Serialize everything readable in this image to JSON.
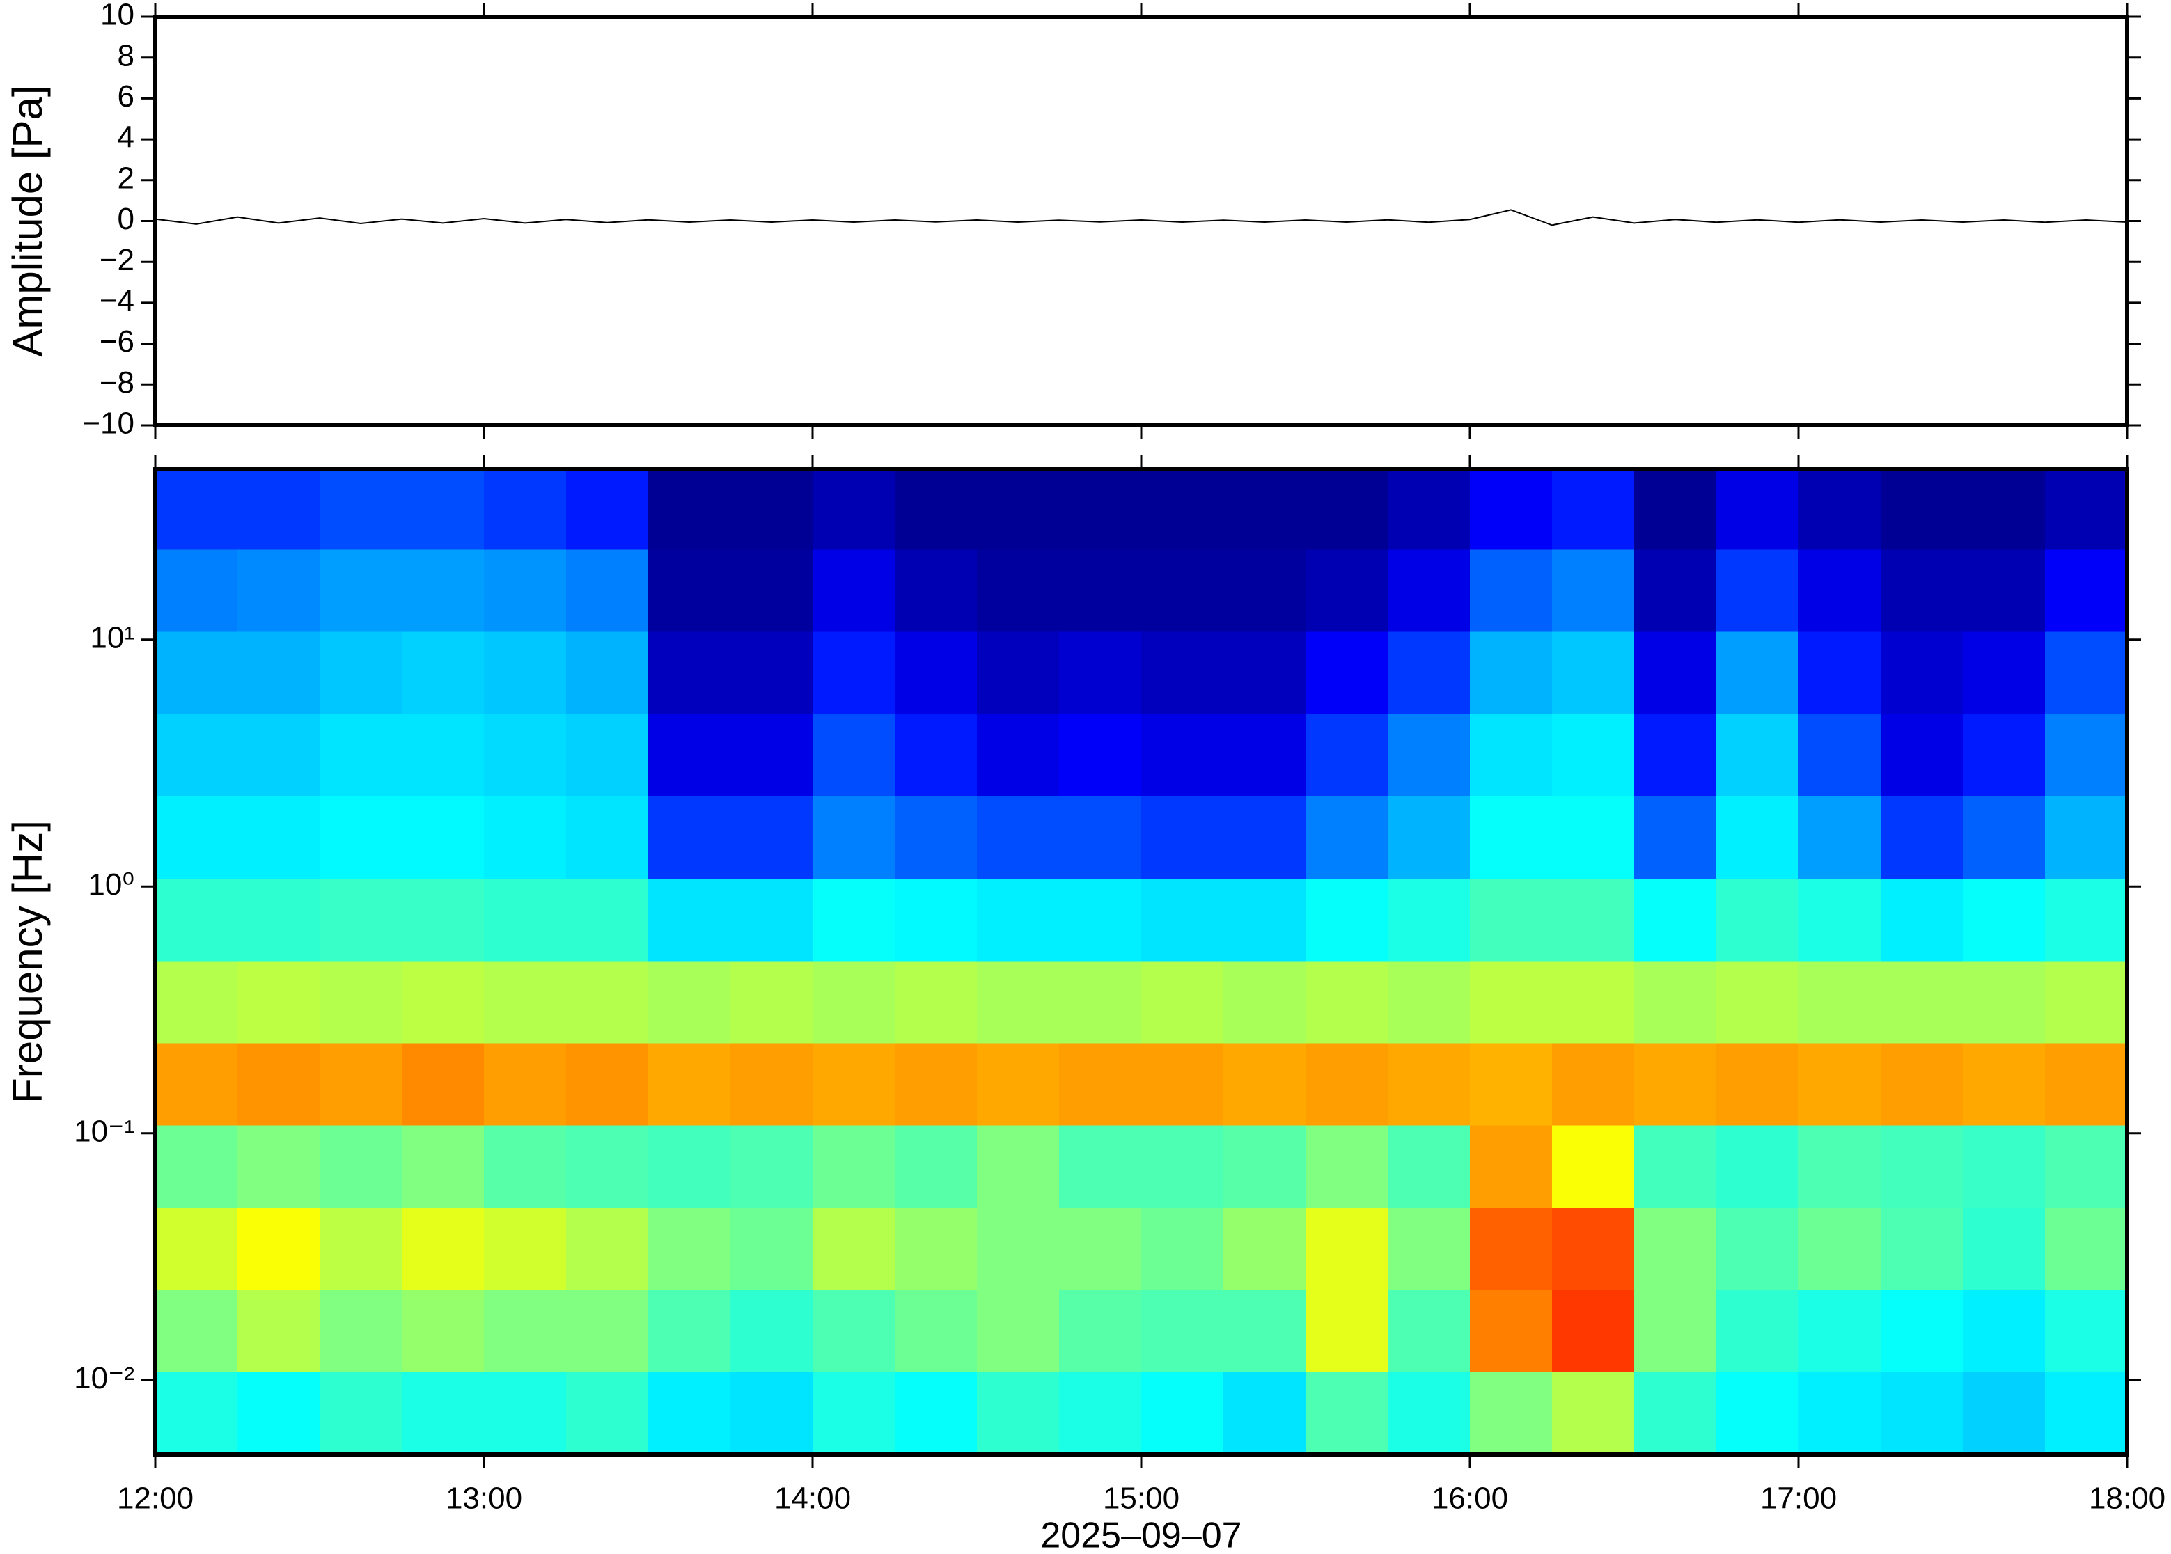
{
  "chart_data": [
    {
      "type": "line",
      "ylabel": "Amplitude [Pa]",
      "xlim": [
        12,
        18
      ],
      "xticks": [
        12,
        13,
        14,
        15,
        16,
        17,
        18
      ],
      "ylim": [
        -10,
        10
      ],
      "yticks": [
        {
          "value": -10,
          "label": "−10"
        },
        {
          "value": -8,
          "label": "−8"
        },
        {
          "value": -6,
          "label": "−6"
        },
        {
          "value": -4,
          "label": "−4"
        },
        {
          "value": -2,
          "label": "−2"
        },
        0,
        2,
        4,
        6,
        8,
        10
      ],
      "color": "#000000",
      "x": [
        12,
        12.125,
        12.25,
        12.375,
        12.5,
        12.625,
        12.75,
        12.875,
        13,
        13.125,
        13.25,
        13.375,
        13.5,
        13.625,
        13.75,
        13.875,
        14,
        14.125,
        14.25,
        14.375,
        14.5,
        14.625,
        14.75,
        14.875,
        15,
        15.125,
        15.25,
        15.375,
        15.5,
        15.625,
        15.75,
        15.875,
        16,
        16.125,
        16.25,
        16.375,
        16.5,
        16.625,
        16.75,
        16.875,
        17,
        17.125,
        17.25,
        17.375,
        17.5,
        17.625,
        17.75,
        17.875,
        18
      ],
      "values": [
        0.1,
        -0.15,
        0.2,
        -0.1,
        0.15,
        -0.12,
        0.1,
        -0.1,
        0.12,
        -0.1,
        0.08,
        -0.08,
        0.06,
        -0.05,
        0.05,
        -0.05,
        0.05,
        -0.05,
        0.05,
        -0.04,
        0.05,
        -0.05,
        0.04,
        -0.04,
        0.05,
        -0.05,
        0.04,
        -0.05,
        0.05,
        -0.05,
        0.06,
        -0.06,
        0.08,
        0.55,
        -0.2,
        0.2,
        -0.1,
        0.08,
        -0.06,
        0.06,
        -0.06,
        0.06,
        -0.05,
        0.05,
        -0.05,
        0.05,
        -0.06,
        0.05,
        -0.05
      ]
    },
    {
      "type": "heatmap",
      "ylabel": "Frequency [Hz]",
      "xlabel": "2025–09–07",
      "xlim": [
        12,
        18
      ],
      "xticks": [
        {
          "value": 12,
          "label": "12:00"
        },
        {
          "value": 13,
          "label": "13:00"
        },
        {
          "value": 14,
          "label": "14:00"
        },
        {
          "value": 15,
          "label": "15:00"
        },
        {
          "value": 16,
          "label": "16:00"
        },
        {
          "value": 17,
          "label": "17:00"
        },
        {
          "value": 18,
          "label": "18:00"
        }
      ],
      "yscale": "log",
      "ylim": [
        0.005,
        49
      ],
      "yticks": [
        {
          "value": 0.01,
          "label": "10⁻²"
        },
        {
          "value": 0.1,
          "label": "10⁻¹"
        },
        {
          "value": 1,
          "label": "10⁰"
        },
        {
          "value": 10,
          "label": "10¹"
        }
      ],
      "colormap": "jet",
      "x_bins": [
        12,
        12.25,
        12.5,
        12.75,
        13,
        13.25,
        13.5,
        13.75,
        14,
        14.25,
        14.5,
        14.75,
        15,
        15.25,
        15.5,
        15.75,
        16,
        16.25,
        16.5,
        16.75,
        17,
        17.25,
        17.5,
        17.75,
        18
      ],
      "y_bins": [
        0.005,
        0.0108,
        0.0232,
        0.05,
        0.108,
        0.232,
        0.5,
        1.08,
        2.32,
        5,
        10.8,
        23.2,
        49
      ],
      "values": [
        [
          0.4,
          0.38,
          0.42,
          0.4,
          0.4,
          0.42,
          0.36,
          0.35,
          0.4,
          0.38,
          0.42,
          0.4,
          0.38,
          0.35,
          0.45,
          0.4,
          0.5,
          0.55,
          0.42,
          0.38,
          0.36,
          0.35,
          0.33,
          0.36
        ],
        [
          0.5,
          0.55,
          0.5,
          0.52,
          0.5,
          0.5,
          0.45,
          0.42,
          0.45,
          0.48,
          0.5,
          0.46,
          0.45,
          0.45,
          0.6,
          0.45,
          0.75,
          0.82,
          0.5,
          0.42,
          0.4,
          0.38,
          0.36,
          0.4
        ],
        [
          0.58,
          0.62,
          0.56,
          0.6,
          0.58,
          0.55,
          0.5,
          0.48,
          0.55,
          0.52,
          0.5,
          0.5,
          0.48,
          0.52,
          0.6,
          0.5,
          0.78,
          0.8,
          0.5,
          0.45,
          0.48,
          0.45,
          0.42,
          0.48
        ],
        [
          0.48,
          0.5,
          0.48,
          0.5,
          0.46,
          0.45,
          0.44,
          0.45,
          0.48,
          0.46,
          0.5,
          0.45,
          0.45,
          0.46,
          0.5,
          0.45,
          0.72,
          0.62,
          0.44,
          0.42,
          0.45,
          0.44,
          0.43,
          0.45
        ],
        [
          0.72,
          0.73,
          0.72,
          0.74,
          0.72,
          0.73,
          0.71,
          0.72,
          0.71,
          0.72,
          0.71,
          0.72,
          0.72,
          0.71,
          0.72,
          0.71,
          0.7,
          0.72,
          0.71,
          0.72,
          0.71,
          0.72,
          0.71,
          0.72
        ],
        [
          0.55,
          0.56,
          0.55,
          0.56,
          0.55,
          0.55,
          0.54,
          0.55,
          0.54,
          0.55,
          0.54,
          0.54,
          0.55,
          0.54,
          0.55,
          0.54,
          0.56,
          0.56,
          0.54,
          0.55,
          0.54,
          0.54,
          0.54,
          0.55
        ],
        [
          0.42,
          0.42,
          0.43,
          0.43,
          0.42,
          0.42,
          0.35,
          0.35,
          0.38,
          0.37,
          0.36,
          0.36,
          0.35,
          0.35,
          0.38,
          0.4,
          0.44,
          0.44,
          0.38,
          0.42,
          0.4,
          0.36,
          0.38,
          0.4
        ],
        [
          0.36,
          0.36,
          0.37,
          0.37,
          0.36,
          0.35,
          0.18,
          0.18,
          0.25,
          0.22,
          0.2,
          0.2,
          0.18,
          0.18,
          0.25,
          0.3,
          0.38,
          0.38,
          0.22,
          0.36,
          0.28,
          0.18,
          0.22,
          0.3
        ],
        [
          0.33,
          0.33,
          0.35,
          0.35,
          0.34,
          0.33,
          0.1,
          0.1,
          0.2,
          0.15,
          0.1,
          0.12,
          0.1,
          0.1,
          0.18,
          0.25,
          0.35,
          0.36,
          0.15,
          0.33,
          0.2,
          0.1,
          0.15,
          0.25
        ],
        [
          0.3,
          0.3,
          0.32,
          0.33,
          0.32,
          0.3,
          0.06,
          0.06,
          0.15,
          0.1,
          0.06,
          0.08,
          0.06,
          0.06,
          0.12,
          0.18,
          0.3,
          0.32,
          0.1,
          0.28,
          0.15,
          0.08,
          0.1,
          0.2
        ],
        [
          0.25,
          0.26,
          0.28,
          0.28,
          0.27,
          0.25,
          0.03,
          0.03,
          0.1,
          0.05,
          0.03,
          0.03,
          0.03,
          0.03,
          0.05,
          0.1,
          0.22,
          0.25,
          0.05,
          0.18,
          0.1,
          0.05,
          0.05,
          0.12
        ],
        [
          0.18,
          0.18,
          0.2,
          0.2,
          0.18,
          0.15,
          0.02,
          0.02,
          0.05,
          0.02,
          0.02,
          0.02,
          0.02,
          0.02,
          0.02,
          0.05,
          0.12,
          0.15,
          0.02,
          0.1,
          0.05,
          0.02,
          0.02,
          0.05
        ]
      ]
    }
  ]
}
